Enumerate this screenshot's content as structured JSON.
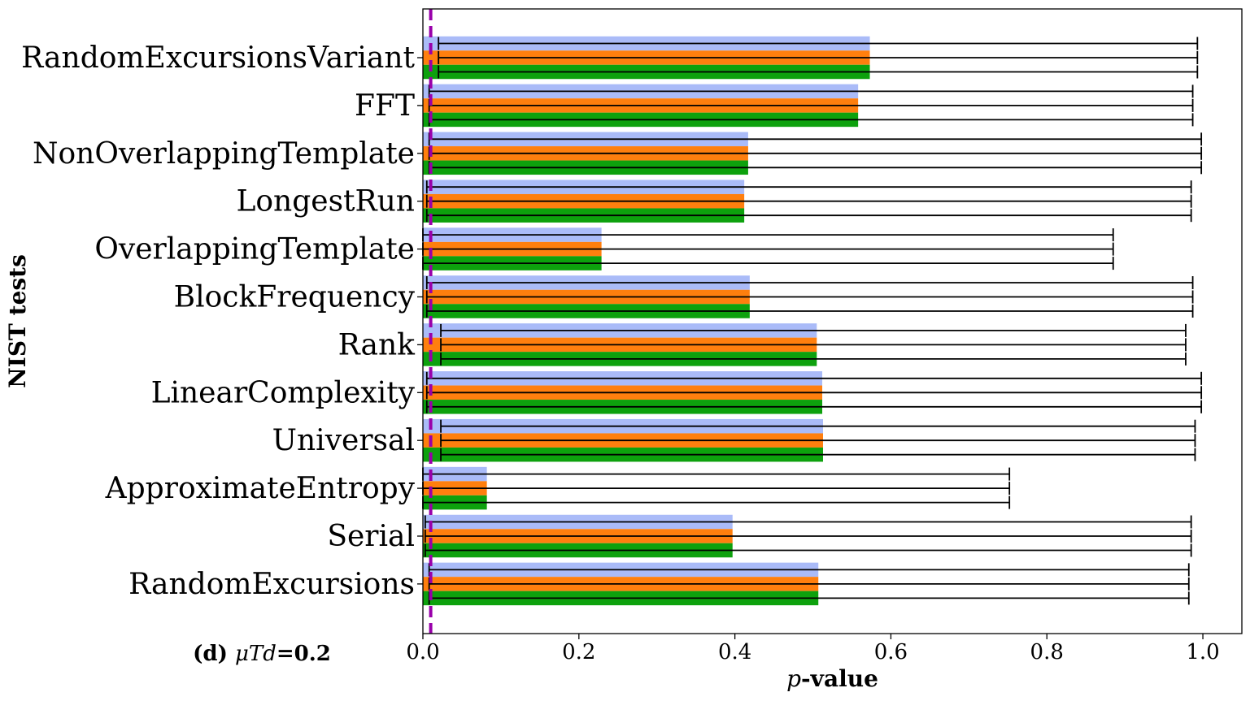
{
  "chart_data": {
    "type": "bar",
    "orientation": "horizontal",
    "categories": [
      "RandomExcursionsVariant",
      "FFT",
      "NonOverlappingTemplate",
      "LongestRun",
      "OverlappingTemplate",
      "BlockFrequency",
      "Rank",
      "LinearComplexity",
      "Universal",
      "ApproximateEntropy",
      "Serial",
      "RandomExcursions"
    ],
    "series": [
      {
        "color": "#aabbf8",
        "values": [
          0.573,
          0.558,
          0.417,
          0.412,
          0.229,
          0.419,
          0.505,
          0.512,
          0.513,
          0.082,
          0.397,
          0.507
        ],
        "err_low": [
          0.02,
          0.008,
          0.008,
          0.005,
          0.0,
          0.005,
          0.023,
          0.005,
          0.023,
          0.0,
          0.003,
          0.008
        ],
        "err_high": [
          0.993,
          0.987,
          0.998,
          0.985,
          0.885,
          0.987,
          0.978,
          0.998,
          0.99,
          0.752,
          0.985,
          0.982
        ]
      },
      {
        "color": "#ff7f0e",
        "values": [
          0.573,
          0.558,
          0.417,
          0.412,
          0.229,
          0.419,
          0.505,
          0.512,
          0.513,
          0.082,
          0.397,
          0.507
        ],
        "err_low": [
          0.02,
          0.008,
          0.008,
          0.005,
          0.0,
          0.005,
          0.023,
          0.005,
          0.023,
          0.0,
          0.003,
          0.008
        ],
        "err_high": [
          0.993,
          0.987,
          0.998,
          0.985,
          0.885,
          0.987,
          0.978,
          0.998,
          0.99,
          0.752,
          0.985,
          0.982
        ]
      },
      {
        "color": "#0da10d",
        "values": [
          0.573,
          0.558,
          0.417,
          0.412,
          0.229,
          0.419,
          0.505,
          0.512,
          0.513,
          0.082,
          0.397,
          0.507
        ],
        "err_low": [
          0.02,
          0.008,
          0.008,
          0.005,
          0.0,
          0.005,
          0.023,
          0.005,
          0.023,
          0.0,
          0.003,
          0.008
        ],
        "err_high": [
          0.993,
          0.987,
          0.998,
          0.985,
          0.885,
          0.987,
          0.978,
          0.998,
          0.99,
          0.752,
          0.985,
          0.982
        ]
      }
    ],
    "threshold_line": {
      "x": 0.01,
      "color": "#9900aa",
      "style": "dashed"
    },
    "xlabel": "p-value",
    "ylabel": "NIST tests",
    "panel_label": "(d) μTd=0.2",
    "xlim": [
      0.0,
      1.05
    ],
    "xticks": [
      0.0,
      0.2,
      0.4,
      0.6,
      0.8,
      1.0
    ],
    "xtick_labels": [
      "0.0",
      "0.2",
      "0.4",
      "0.6",
      "0.8",
      "1.0"
    ],
    "grid": false,
    "legend": "none"
  }
}
